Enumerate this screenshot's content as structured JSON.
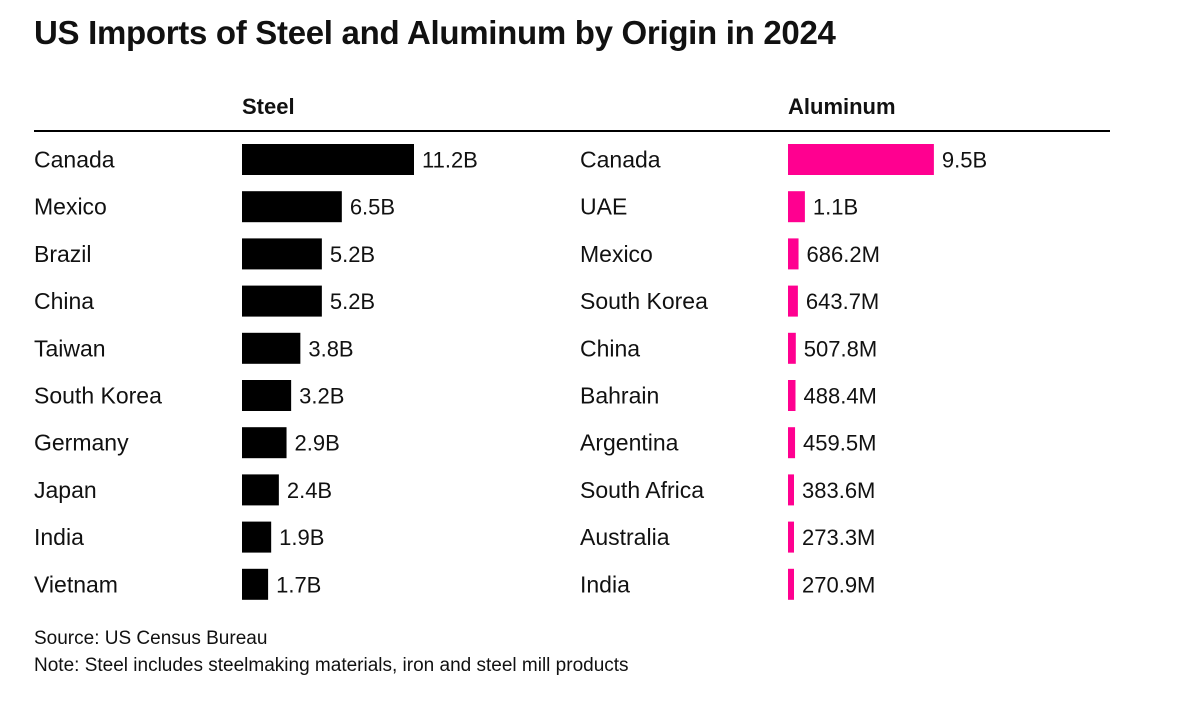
{
  "title": "US Imports of Steel and Aluminum by Origin in 2024",
  "chart_data": [
    {
      "type": "bar",
      "orientation": "horizontal",
      "title": "Steel",
      "unit": "USD billions",
      "color": "#000000",
      "categories": [
        "Canada",
        "Mexico",
        "Brazil",
        "China",
        "Taiwan",
        "South Korea",
        "Germany",
        "Japan",
        "India",
        "Vietnam"
      ],
      "values": [
        11.2,
        6.5,
        5.2,
        5.2,
        3.8,
        3.2,
        2.9,
        2.4,
        1.9,
        1.7
      ],
      "labels": [
        "11.2B",
        "6.5B",
        "5.2B",
        "5.2B",
        "3.8B",
        "3.2B",
        "2.9B",
        "2.4B",
        "1.9B",
        "1.7B"
      ]
    },
    {
      "type": "bar",
      "orientation": "horizontal",
      "title": "Aluminum",
      "unit": "USD billions",
      "color": "#ff0090",
      "categories": [
        "Canada",
        "UAE",
        "Mexico",
        "South Korea",
        "China",
        "Bahrain",
        "Argentina",
        "South Africa",
        "Australia",
        "India"
      ],
      "values": [
        9.5,
        1.1,
        0.6862,
        0.6437,
        0.5078,
        0.4884,
        0.4595,
        0.3836,
        0.2733,
        0.2709
      ],
      "labels": [
        "9.5B",
        "1.1B",
        "686.2M",
        "643.7M",
        "507.8M",
        "488.4M",
        "459.5M",
        "383.6M",
        "273.3M",
        "270.9M"
      ]
    }
  ],
  "footer": {
    "source": "Source: US Census Bureau",
    "note": "Note: Steel includes steelmaking materials, iron and steel mill products"
  }
}
